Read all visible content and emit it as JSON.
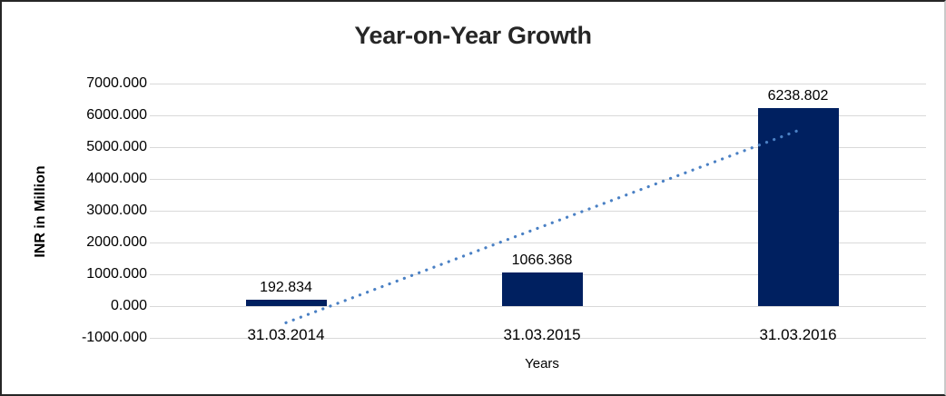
{
  "chart_data": {
    "type": "bar",
    "title": "Year-on-Year Growth",
    "xlabel": "Years",
    "ylabel": "INR in Million",
    "categories": [
      "31.03.2014",
      "31.03.2015",
      "31.03.2016"
    ],
    "values": [
      192.834,
      1066.368,
      6238.802
    ],
    "data_labels": [
      "192.834",
      "1066.368",
      "6238.802"
    ],
    "ylim": [
      -1000,
      7000
    ],
    "ytick_step": 1000,
    "ytick_labels": [
      "7000.000",
      "6000.000",
      "5000.000",
      "4000.000",
      "3000.000",
      "2000.000",
      "1000.000",
      "0.000",
      "-1000.000"
    ],
    "grid": true,
    "legend": "none",
    "colors": {
      "bar": "#002060",
      "trendline": "#4a80c4",
      "gridline": "#d9d9d9",
      "text": "#000000",
      "title_text": "#262626"
    },
    "trendline": {
      "style": "dotted",
      "shape": "linear",
      "start_category_index": 0,
      "end_category_index": 2,
      "start_value": -523.65,
      "end_value": 5522.32
    }
  }
}
